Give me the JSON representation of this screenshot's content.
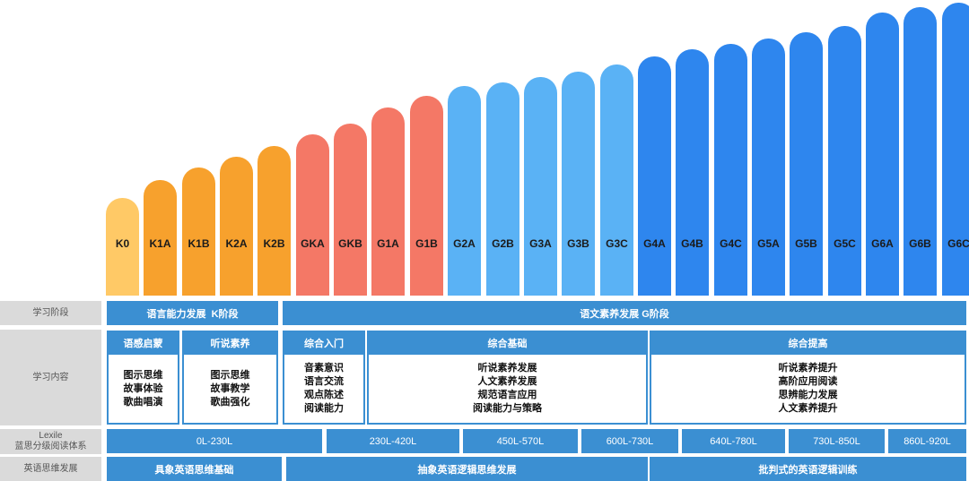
{
  "levels": [
    {
      "label": "K0",
      "color": "#ffc966"
    },
    {
      "label": "K1A",
      "color": "#f7a12d"
    },
    {
      "label": "K1B",
      "color": "#f7a12d"
    },
    {
      "label": "K2A",
      "color": "#f7a12d"
    },
    {
      "label": "K2B",
      "color": "#f7a12d"
    },
    {
      "label": "GKA",
      "color": "#f47866"
    },
    {
      "label": "GKB",
      "color": "#f47866"
    },
    {
      "label": "G1A",
      "color": "#f47866"
    },
    {
      "label": "G1B",
      "color": "#f47866"
    },
    {
      "label": "G2A",
      "color": "#5ab2f5"
    },
    {
      "label": "G2B",
      "color": "#5ab2f5"
    },
    {
      "label": "G3A",
      "color": "#5ab2f5"
    },
    {
      "label": "G3B",
      "color": "#5ab2f5"
    },
    {
      "label": "G3C",
      "color": "#5ab2f5"
    },
    {
      "label": "G4A",
      "color": "#2e86ee"
    },
    {
      "label": "G4B",
      "color": "#2e86ee"
    },
    {
      "label": "G4C",
      "color": "#2e86ee"
    },
    {
      "label": "G5A",
      "color": "#2e86ee"
    },
    {
      "label": "G5B",
      "color": "#2e86ee"
    },
    {
      "label": "G5C",
      "color": "#2e86ee"
    },
    {
      "label": "G6A",
      "color": "#2e86ee"
    },
    {
      "label": "G6B",
      "color": "#2e86ee"
    },
    {
      "label": "G6C",
      "color": "#2e86ee"
    }
  ],
  "row_labels": {
    "stage": "学习阶段",
    "content": "学习内容",
    "lexile_line1": "Lexile",
    "lexile_line2": "蓝思分级阅读体系",
    "thinking": "英语思维发展"
  },
  "stages": {
    "k": "语言能力发展  K阶段",
    "g": "语文素养发展 G阶段"
  },
  "content": [
    {
      "title": "语感启蒙",
      "items": [
        "图示思维",
        "故事体验",
        "歌曲唱演"
      ]
    },
    {
      "title": "听说素养",
      "items": [
        "图示思维",
        "故事教学",
        "歌曲强化"
      ]
    },
    {
      "title": "综合入门",
      "items": [
        "音素意识",
        "语言交流",
        "观点陈述",
        "阅读能力"
      ]
    },
    {
      "title": "综合基础",
      "items": [
        "听说素养发展",
        "人文素养发展",
        "规范语言应用",
        "阅读能力与策略"
      ]
    },
    {
      "title": "综合提高",
      "items": [
        "听说素养提升",
        "高阶应用阅读",
        "思辨能力发展",
        "人文素养提升"
      ]
    }
  ],
  "lexile": [
    "0L-230L",
    "230L-420L",
    "450L-570L",
    "600L-730L",
    "640L-780L",
    "730L-850L",
    "860L-920L"
  ],
  "thinking": [
    "具象英语思维基础",
    "抽象英语逻辑思维发展",
    "批判式的英语逻辑训练"
  ]
}
